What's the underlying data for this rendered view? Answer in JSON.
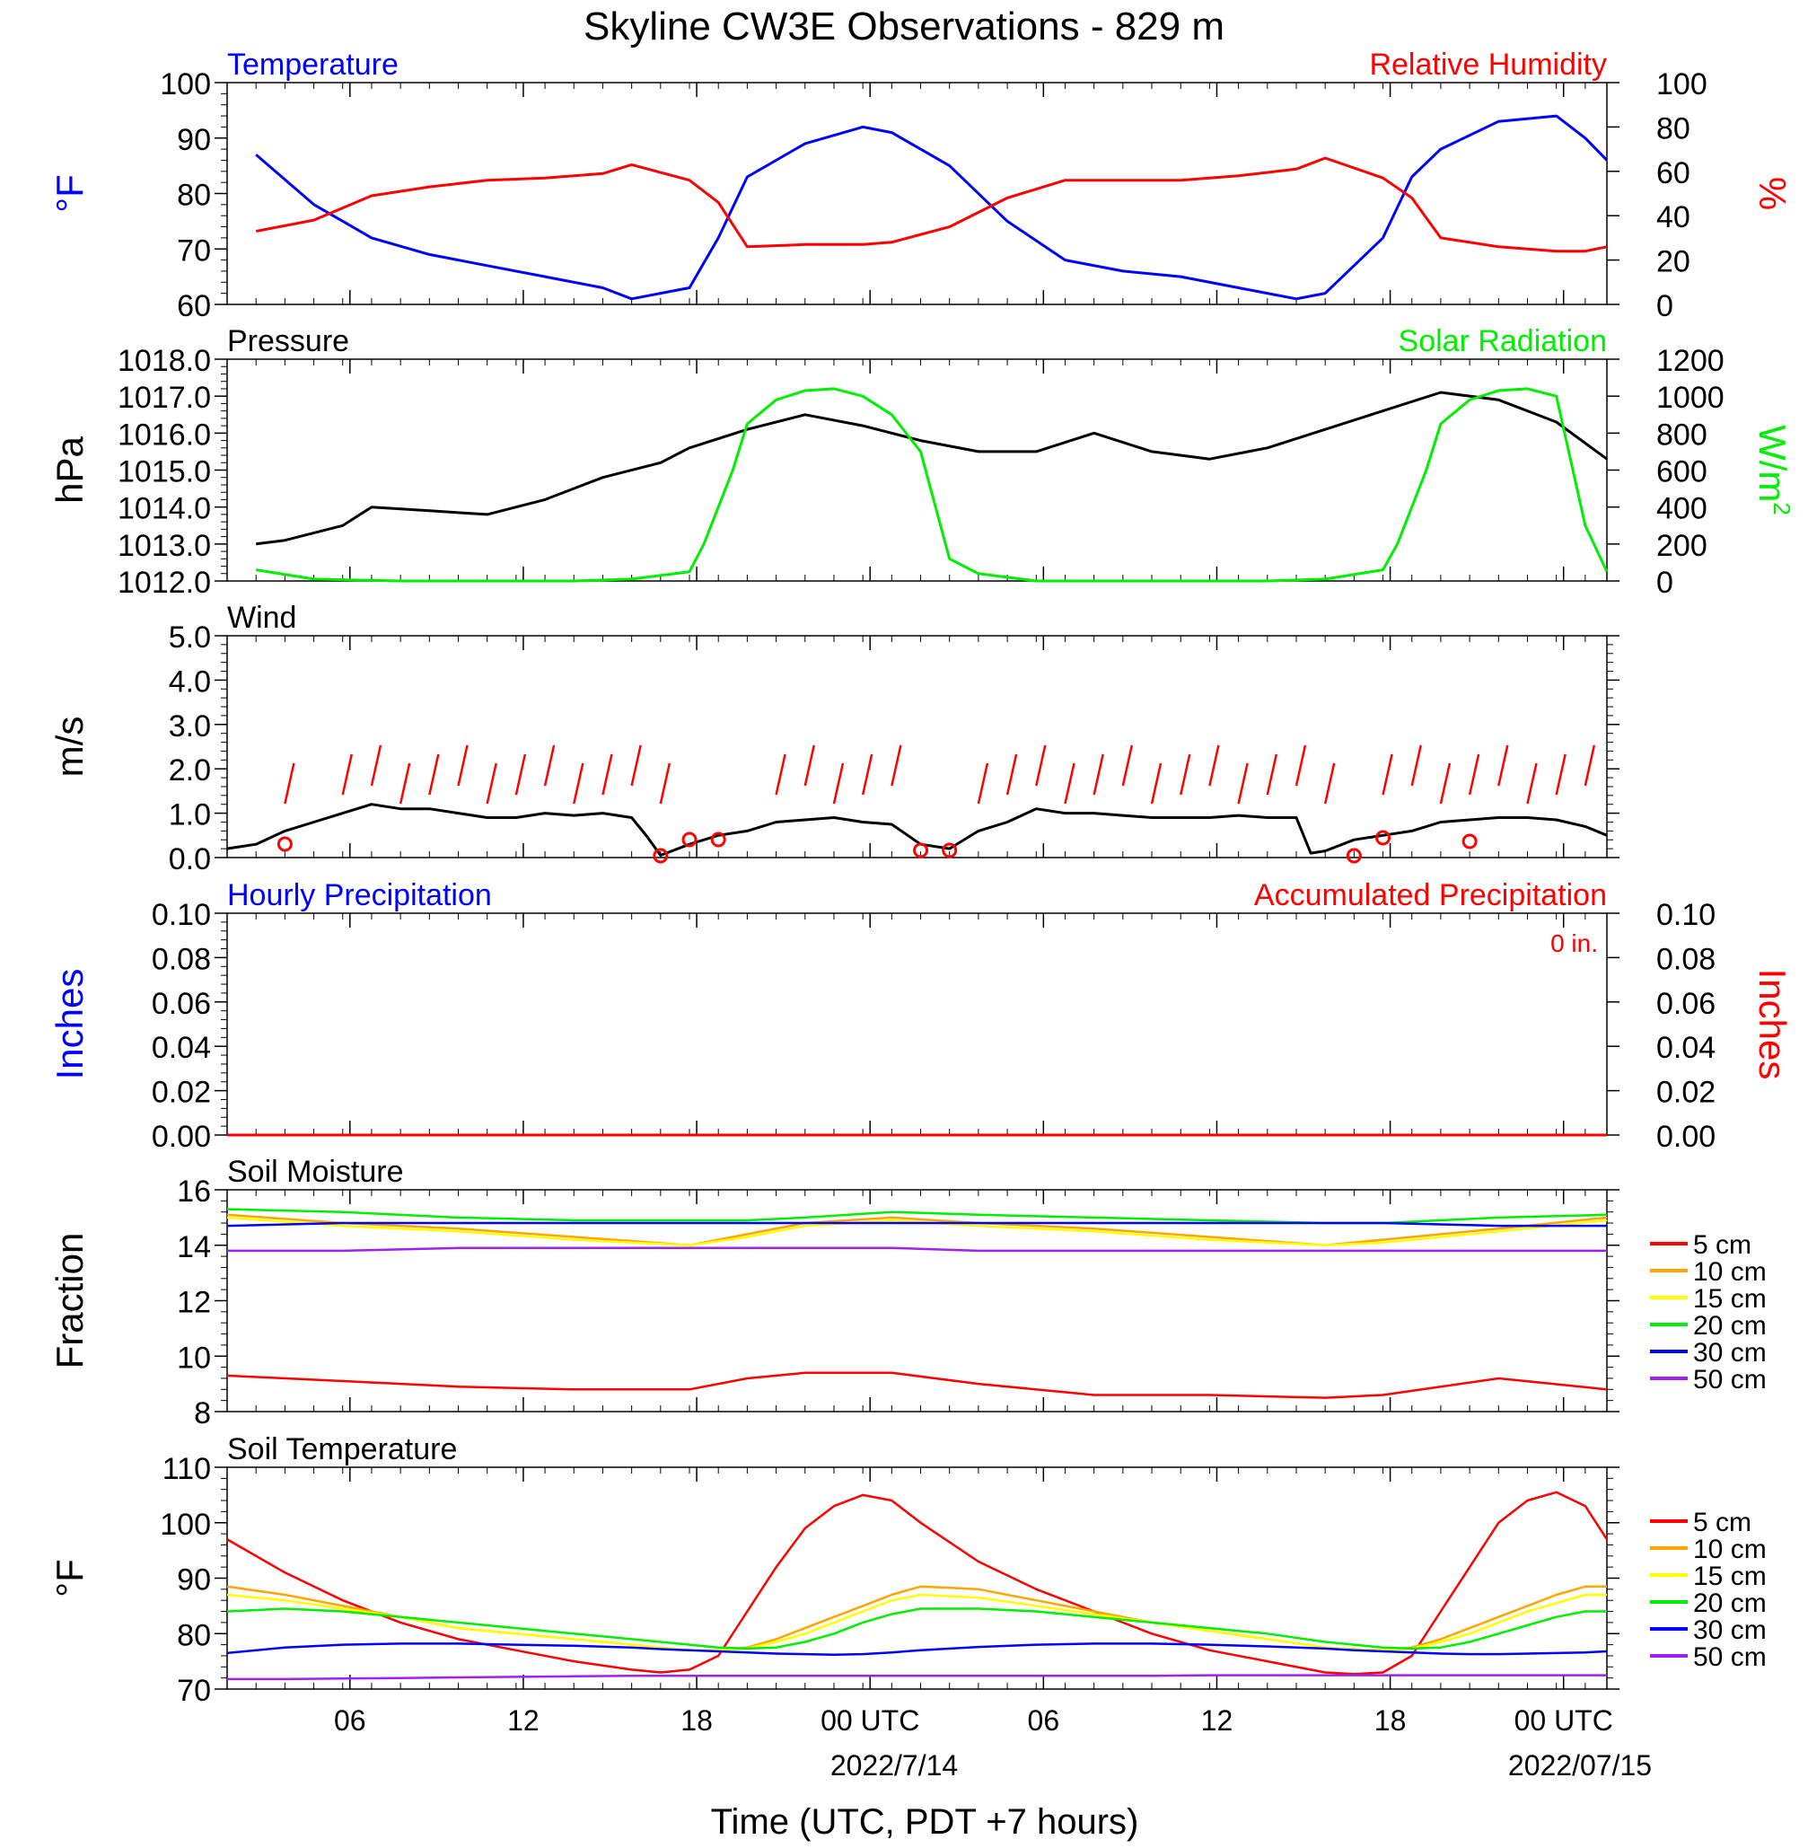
{
  "title": "Skyline CW3E Observations - 829 m",
  "xlabel": "Time (UTC, PDT +7 hours)",
  "x_ticks": [
    "06",
    "12",
    "18",
    "00 UTC",
    "06",
    "12",
    "18",
    "00 UTC"
  ],
  "date_labels": [
    "2022/7/14",
    "2022/07/15"
  ],
  "colors": {
    "blue": "#0000ff",
    "red": "#ff0000",
    "green": "#00ee00",
    "black": "#000000",
    "orange": "#ffa500",
    "yellow": "#ffff00",
    "purple": "#a020f0"
  },
  "chart_data": [
    {
      "type": "line",
      "title_left": "Temperature",
      "title_right": "Relative Humidity",
      "ylabel_left": "°F",
      "ylabel_right": "%",
      "ylim_left": [
        60,
        100
      ],
      "ylim_right": [
        0,
        100
      ],
      "y_ticks_left": [
        "100",
        "90",
        "80",
        "70",
        "60"
      ],
      "y_ticks_right": [
        "100",
        "80",
        "60",
        "40",
        "20",
        "0"
      ],
      "x_hours": [
        1,
        3,
        5,
        7,
        9,
        11,
        13,
        14,
        16,
        17,
        18,
        20,
        22,
        23,
        25,
        27,
        29,
        31,
        33,
        35,
        37,
        38,
        40,
        41,
        42,
        44,
        46,
        47,
        48
      ],
      "series": [
        {
          "name": "Temperature",
          "axis": "left",
          "values": [
            87,
            78,
            72,
            69,
            67,
            65,
            63,
            61,
            63,
            72,
            83,
            89,
            92,
            91,
            85,
            75,
            68,
            66,
            65,
            63,
            61,
            62,
            72,
            83,
            88,
            93,
            94,
            90,
            86
          ]
        },
        {
          "name": "Relative Humidity",
          "axis": "right",
          "values": [
            33,
            38,
            49,
            53,
            56,
            57,
            59,
            63,
            56,
            46,
            26,
            27,
            27,
            28,
            35,
            48,
            56,
            56,
            56,
            58,
            61,
            66,
            57,
            48,
            30,
            26,
            24,
            24,
            26
          ]
        }
      ]
    },
    {
      "type": "line",
      "title_left": "Pressure",
      "title_right": "Solar Radiation",
      "ylabel_left": "hPa",
      "ylabel_right": "W/m",
      "ylabel_right_sup": "2",
      "ylim_left": [
        1012,
        1018
      ],
      "ylim_right": [
        0,
        1200
      ],
      "y_ticks_left": [
        "1018.0",
        "1017.0",
        "1016.0",
        "1015.0",
        "1014.0",
        "1013.0",
        "1012.0"
      ],
      "y_ticks_right": [
        "1200",
        "1000",
        "800",
        "600",
        "400",
        "200",
        "0"
      ],
      "x_hours": [
        1,
        2,
        4,
        5,
        7,
        9,
        11,
        13,
        15,
        16,
        18,
        20,
        22,
        24,
        26,
        28,
        30,
        32,
        34,
        36,
        38,
        40,
        42,
        44,
        46,
        48
      ],
      "series": [
        {
          "name": "Pressure",
          "axis": "left",
          "values": [
            1013.0,
            1013.1,
            1013.5,
            1014.0,
            1013.9,
            1013.8,
            1014.2,
            1014.8,
            1015.2,
            1015.6,
            1016.1,
            1016.5,
            1016.2,
            1015.8,
            1015.5,
            1015.5,
            1016.0,
            1015.5,
            1015.3,
            1015.6,
            1016.1,
            1016.6,
            1017.1,
            1016.9,
            1016.3,
            1015.3
          ]
        },
        {
          "name": "Solar Radiation",
          "axis": "right",
          "x_hours": [
            1,
            3,
            6,
            9,
            12,
            14,
            16,
            16.5,
            17.5,
            18,
            19,
            20,
            21,
            22,
            23,
            24,
            25,
            26,
            28,
            32,
            36,
            38,
            40,
            40.5,
            41.5,
            42,
            43,
            44,
            45,
            46,
            47,
            48
          ],
          "values": [
            60,
            10,
            0,
            0,
            0,
            10,
            50,
            200,
            600,
            850,
            980,
            1030,
            1040,
            1000,
            900,
            700,
            120,
            40,
            0,
            0,
            0,
            10,
            60,
            200,
            600,
            850,
            980,
            1030,
            1040,
            1000,
            300,
            50
          ]
        }
      ]
    },
    {
      "type": "line",
      "title_left": "Wind",
      "ylabel_left": "m/s",
      "ylim_left": [
        0,
        5
      ],
      "y_ticks_left": [
        "5.0",
        "4.0",
        "3.0",
        "2.0",
        "1.0",
        "0.0"
      ],
      "x_hours": [
        0,
        1,
        2,
        3,
        4,
        5,
        6,
        7,
        8,
        9,
        10,
        11,
        12,
        13,
        14,
        14.5,
        15,
        16,
        17,
        18,
        19,
        20,
        21,
        22,
        23,
        24,
        25,
        26,
        27,
        28,
        29,
        30,
        31,
        32,
        33,
        34,
        35,
        36,
        37,
        37.5,
        38,
        39,
        40,
        41,
        42,
        43,
        44,
        45,
        46,
        47,
        48
      ],
      "series": [
        {
          "name": "Wind",
          "values": [
            0.2,
            0.3,
            0.6,
            0.8,
            1.0,
            1.2,
            1.1,
            1.1,
            1.0,
            0.9,
            0.9,
            1.0,
            0.95,
            1.0,
            0.9,
            0.5,
            0.05,
            0.3,
            0.5,
            0.6,
            0.8,
            0.85,
            0.9,
            0.8,
            0.75,
            0.3,
            0.2,
            0.6,
            0.8,
            1.1,
            1.0,
            1.0,
            0.95,
            0.9,
            0.9,
            0.9,
            0.95,
            0.9,
            0.9,
            0.1,
            0.15,
            0.4,
            0.5,
            0.6,
            0.8,
            0.85,
            0.9,
            0.9,
            0.85,
            0.7,
            0.5
          ]
        }
      ]
    },
    {
      "type": "line",
      "title_left": "Hourly Precipitation",
      "title_right": "Accumulated Precipitation",
      "annotation": "0 in.",
      "ylabel_left": "Inches",
      "ylabel_right": "Inches",
      "ylim_left": [
        0,
        0.1
      ],
      "y_ticks_left": [
        "0.10",
        "0.08",
        "0.06",
        "0.04",
        "0.02",
        "0.00"
      ],
      "y_ticks_right": [
        "0.10",
        "0.08",
        "0.06",
        "0.04",
        "0.02",
        "0.00"
      ],
      "x_hours": [
        0,
        48
      ],
      "series": [
        {
          "name": "Hourly Precipitation",
          "values": [
            0,
            0
          ]
        },
        {
          "name": "Accumulated Precipitation",
          "values": [
            0,
            0
          ]
        }
      ]
    },
    {
      "type": "line",
      "title_left": "Soil Moisture",
      "ylabel_left": "Fraction",
      "ylim_left": [
        8,
        16
      ],
      "y_ticks_left": [
        "16",
        "14",
        "12",
        "10",
        "8"
      ],
      "x_hours": [
        0,
        4,
        8,
        12,
        16,
        18,
        20,
        23,
        26,
        30,
        34,
        38,
        40,
        44,
        48
      ],
      "series": [
        {
          "name": "5 cm",
          "values": [
            9.3,
            9.1,
            8.9,
            8.8,
            8.8,
            9.2,
            9.4,
            9.4,
            9.0,
            8.6,
            8.6,
            8.5,
            8.6,
            9.2,
            8.8
          ]
        },
        {
          "name": "10 cm",
          "values": [
            15.1,
            14.8,
            14.6,
            14.3,
            14.0,
            14.4,
            14.8,
            15.0,
            14.8,
            14.6,
            14.3,
            14.0,
            14.2,
            14.6,
            15.0
          ]
        },
        {
          "name": "15 cm",
          "values": [
            15.0,
            14.7,
            14.5,
            14.2,
            14.0,
            14.3,
            14.7,
            14.9,
            14.7,
            14.5,
            14.2,
            14.0,
            14.1,
            14.5,
            14.9
          ]
        },
        {
          "name": "20 cm",
          "values": [
            15.3,
            15.2,
            15.0,
            14.9,
            14.9,
            14.9,
            15.0,
            15.2,
            15.1,
            15.0,
            14.9,
            14.8,
            14.8,
            15.0,
            15.1
          ]
        },
        {
          "name": "30 cm",
          "values": [
            14.7,
            14.8,
            14.8,
            14.8,
            14.8,
            14.8,
            14.8,
            14.8,
            14.8,
            14.8,
            14.8,
            14.8,
            14.8,
            14.7,
            14.7
          ]
        },
        {
          "name": "50 cm",
          "values": [
            13.8,
            13.8,
            13.9,
            13.9,
            13.9,
            13.9,
            13.9,
            13.9,
            13.8,
            13.8,
            13.8,
            13.8,
            13.8,
            13.8,
            13.8
          ]
        }
      ],
      "legend": [
        "5 cm",
        "10 cm",
        "15 cm",
        "20 cm",
        "30 cm",
        "50 cm"
      ]
    },
    {
      "type": "line",
      "title_left": "Soil Temperature",
      "ylabel_left": "°F",
      "ylim_left": [
        70,
        110
      ],
      "y_ticks_left": [
        "110",
        "100",
        "90",
        "80",
        "70"
      ],
      "x_hours": [
        0,
        2,
        4,
        6,
        8,
        10,
        12,
        14,
        15,
        16,
        17,
        18,
        19,
        20,
        21,
        22,
        23,
        24,
        26,
        28,
        30,
        32,
        34,
        36,
        38,
        39,
        40,
        41,
        42,
        43,
        44,
        45,
        46,
        47,
        48
      ],
      "series": [
        {
          "name": "5 cm",
          "values": [
            97,
            91,
            86,
            82,
            79,
            77,
            75,
            73.5,
            73,
            73.5,
            76,
            84,
            92,
            99,
            103,
            105,
            104,
            100,
            93,
            88,
            84,
            80,
            77,
            75,
            73,
            72.7,
            73,
            76,
            84,
            92,
            100,
            104,
            105.5,
            103,
            97
          ]
        },
        {
          "name": "10 cm",
          "values": [
            88.5,
            87,
            85,
            83,
            81,
            80,
            79,
            78,
            77.5,
            77,
            77,
            77.5,
            79,
            81,
            83,
            85,
            87,
            88.5,
            88,
            86,
            84,
            82,
            80.5,
            79,
            77.5,
            77.2,
            77,
            77.5,
            79,
            81,
            83,
            85,
            87,
            88.5,
            88.5
          ]
        },
        {
          "name": "15 cm",
          "values": [
            87,
            86,
            84.5,
            83,
            81,
            80,
            79,
            78,
            77.5,
            77,
            77,
            77.3,
            78.5,
            80,
            82,
            84,
            86,
            87,
            86.5,
            85,
            83.5,
            82,
            80.5,
            79,
            77.5,
            77.2,
            77,
            77.3,
            78.5,
            80,
            82,
            84,
            85.5,
            87,
            87
          ]
        },
        {
          "name": "20 cm",
          "values": [
            84,
            84.5,
            84,
            83,
            82,
            81,
            80,
            79,
            78.5,
            78,
            77.5,
            77.3,
            77.5,
            78.5,
            80,
            82,
            83.5,
            84.5,
            84.5,
            84,
            83,
            82,
            81,
            80,
            78.5,
            78,
            77.5,
            77.3,
            77.5,
            78.5,
            80,
            81.5,
            83,
            84,
            84
          ]
        },
        {
          "name": "30 cm",
          "values": [
            76.5,
            77.5,
            78,
            78.2,
            78.2,
            78,
            77.8,
            77.5,
            77.2,
            77,
            76.8,
            76.6,
            76.4,
            76.3,
            76.2,
            76.3,
            76.6,
            77,
            77.6,
            78,
            78.2,
            78.2,
            78,
            77.7,
            77.3,
            77,
            76.8,
            76.6,
            76.4,
            76.3,
            76.3,
            76.4,
            76.5,
            76.6,
            76.8
          ]
        },
        {
          "name": "50 cm",
          "values": [
            71.8,
            71.8,
            71.9,
            72.0,
            72.1,
            72.2,
            72.3,
            72.4,
            72.4,
            72.4,
            72.4,
            72.4,
            72.4,
            72.4,
            72.4,
            72.4,
            72.4,
            72.4,
            72.4,
            72.4,
            72.4,
            72.4,
            72.5,
            72.5,
            72.5,
            72.5,
            72.5,
            72.5,
            72.5,
            72.5,
            72.5,
            72.5,
            72.5,
            72.5,
            72.5
          ]
        }
      ],
      "legend": [
        "5 cm",
        "10 cm",
        "15 cm",
        "20 cm",
        "30 cm",
        "50 cm"
      ]
    }
  ]
}
